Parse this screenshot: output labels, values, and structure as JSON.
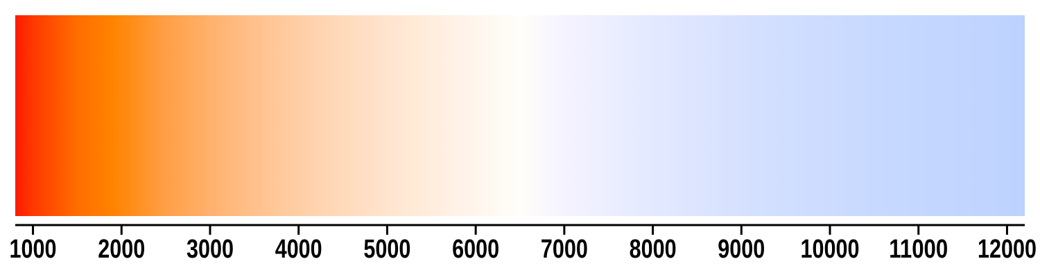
{
  "scale": {
    "min": 800,
    "max": 12200,
    "ticks": [
      1000,
      2000,
      3000,
      4000,
      5000,
      6000,
      7000,
      8000,
      9000,
      10000,
      11000,
      12000
    ],
    "tick_labels": [
      "1000",
      "2000",
      "3000",
      "4000",
      "5000",
      "6000",
      "7000",
      "8000",
      "9000",
      "10000",
      "11000",
      "12000"
    ],
    "gradient_stops": [
      {
        "value": 800,
        "color": "#ff1a00"
      },
      {
        "value": 1000,
        "color": "#ff3800"
      },
      {
        "value": 1500,
        "color": "#ff6d00"
      },
      {
        "value": 1900,
        "color": "#ff8300"
      },
      {
        "value": 2500,
        "color": "#ff9f46"
      },
      {
        "value": 3000,
        "color": "#ffb16d"
      },
      {
        "value": 3500,
        "color": "#ffc18d"
      },
      {
        "value": 4000,
        "color": "#ffcea6"
      },
      {
        "value": 4500,
        "color": "#ffdabb"
      },
      {
        "value": 5000,
        "color": "#ffe4ce"
      },
      {
        "value": 5500,
        "color": "#ffedde"
      },
      {
        "value": 6000,
        "color": "#fff5ed"
      },
      {
        "value": 6500,
        "color": "#fffefa"
      },
      {
        "value": 7000,
        "color": "#f5f3ff"
      },
      {
        "value": 8000,
        "color": "#e3e9ff"
      },
      {
        "value": 9000,
        "color": "#d6e1ff"
      },
      {
        "value": 10000,
        "color": "#ccdbff"
      },
      {
        "value": 11000,
        "color": "#c4d7ff"
      },
      {
        "value": 12000,
        "color": "#bfd3ff"
      },
      {
        "value": 12200,
        "color": "#bcd1ff"
      }
    ],
    "axis_color": "#000000"
  }
}
